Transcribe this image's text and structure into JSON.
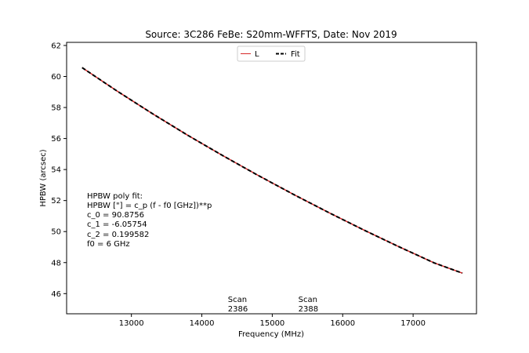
{
  "chart_data": {
    "type": "line",
    "title": "Source: 3C286 FeBe: S20mm-WFFTS, Date: Nov 2019",
    "xlabel": "Frequency (MHz)",
    "ylabel": "HPBW (arcsec)",
    "xlim": [
      12080,
      17900
    ],
    "ylim": [
      44.7,
      62.2
    ],
    "xticks": [
      13000,
      14000,
      15000,
      16000,
      17000
    ],
    "yticks": [
      46,
      48,
      50,
      52,
      54,
      56,
      58,
      60,
      62
    ],
    "grid": false,
    "legend": {
      "placement": "top-center",
      "entries": [
        {
          "label": "L",
          "color": "#d62728",
          "style": "solid"
        },
        {
          "label": "Fit",
          "color": "#000000",
          "style": "dashed"
        }
      ]
    },
    "series": [
      {
        "name": "L",
        "color": "#d62728",
        "x": [
          12300,
          12800,
          13300,
          13800,
          14300,
          14800,
          15300,
          15800,
          16300,
          16800,
          17300,
          17700
        ],
        "y": [
          60.57,
          59.05,
          57.6,
          56.21,
          54.89,
          53.62,
          52.4,
          51.23,
          50.1,
          49.02,
          47.98,
          47.32
        ]
      },
      {
        "name": "Fit",
        "color": "#000000",
        "dashed": true,
        "x": [
          12300,
          12800,
          13300,
          13800,
          14300,
          14800,
          15300,
          15800,
          16300,
          16800,
          17300,
          17700
        ],
        "y": [
          60.57,
          59.05,
          57.6,
          56.21,
          54.89,
          53.62,
          52.4,
          51.23,
          50.1,
          49.02,
          47.98,
          47.32
        ]
      }
    ],
    "fit_text": [
      "HPBW poly fit:",
      "HPBW [\"] = c_p (f - f0 [GHz])**p",
      "c_0 = 90.8756",
      "c_1 = -6.05754",
      "c_2 = 0.199582",
      "f0 = 6 GHz"
    ],
    "scan_annotations": [
      {
        "label": "Scan",
        "number": "2386",
        "x": 14370,
        "y": 45.4
      },
      {
        "label": "Scan",
        "number": "2388",
        "x": 15370,
        "y": 45.4
      }
    ]
  }
}
